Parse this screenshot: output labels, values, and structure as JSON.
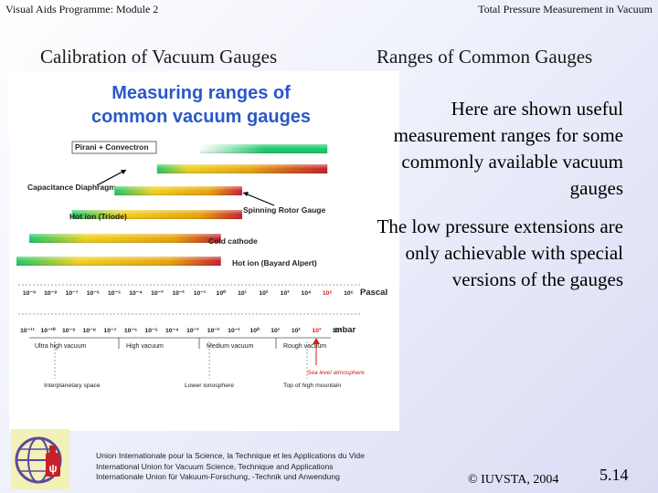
{
  "header": {
    "left": "Visual Aids Programme: Module 2",
    "right": "Total Pressure Measurement in Vacuum"
  },
  "titles": {
    "left": "Calibration of Vacuum Gauges",
    "right": "Ranges of Common Gauges"
  },
  "diagram": {
    "heading_line1": "Measuring ranges of",
    "heading_line2": "common vacuum gauges",
    "gauges": [
      {
        "name": "Pirani + Convectron",
        "from_pa": 0.1,
        "to_pa": 100000,
        "useful_from_pa": 0.1,
        "useful_to_pa": 1000
      },
      {
        "name": "Capacitance Diaphragm",
        "from_pa": 0.001,
        "to_pa": 100000
      },
      {
        "name": "Spinning Rotor Gauge",
        "from_pa": 1e-05,
        "to_pa": 10
      },
      {
        "name": "Hot ion (Triode)",
        "from_pa": 1e-07,
        "to_pa": 10
      },
      {
        "name": "Cold cathode",
        "from_pa": 1e-09,
        "to_pa": 1
      },
      {
        "name": "Hot ion (Bayard Alpert)",
        "from_pa": 1e-10,
        "to_pa": 1
      }
    ],
    "pascal_label": "Pascal",
    "mbar_label": "mbar",
    "pascal_ticks": [
      "10⁻⁹",
      "10⁻⁸",
      "10⁻⁷",
      "10⁻⁶",
      "10⁻⁵",
      "10⁻⁴",
      "10⁻³",
      "10⁻²",
      "10⁻¹",
      "10⁰",
      "10¹",
      "10²",
      "10³",
      "10⁴",
      "10⁵",
      "10⁶"
    ],
    "mbar_ticks": [
      "10⁻¹¹",
      "10⁻¹⁰",
      "10⁻⁹",
      "10⁻⁸",
      "10⁻⁷",
      "10⁻⁶",
      "10⁻⁵",
      "10⁻⁴",
      "10⁻³",
      "10⁻²",
      "10⁻¹",
      "10⁰",
      "10¹",
      "10²",
      "10³",
      "10⁴"
    ],
    "regimes": [
      "Ultra high vacuum",
      "High vacuum",
      "Medium vacuum",
      "Rough vacuum"
    ],
    "sea_level": "Sea level atmosphere",
    "altitudes": [
      "Interplanetary space",
      "Lower ionosphere",
      "Top of high mountain"
    ]
  },
  "paragraphs": {
    "p1": "Here are shown useful measurement ranges for some commonly available vacuum gauges",
    "p2": "The low pressure extensions are only achievable with special versions of the gauges"
  },
  "footer": {
    "line1": "Union Internationale pour la Science, la Technique et les Applications du Vide",
    "line2": "International Union for Vacuum Science, Technique and Applications",
    "line3": "Internationale Union für Vakuum-Forschung, -Technik und Anwendung",
    "copyright": "© IUVSTA, 2004",
    "slide_number": "5.14"
  },
  "colors": {
    "heading_blue": "#2a58c8",
    "bar_green": "#1ec86a",
    "bar_orange": "#e8a30a",
    "bar_red": "#c41e2e",
    "sea_level_red": "#d11e1e"
  }
}
